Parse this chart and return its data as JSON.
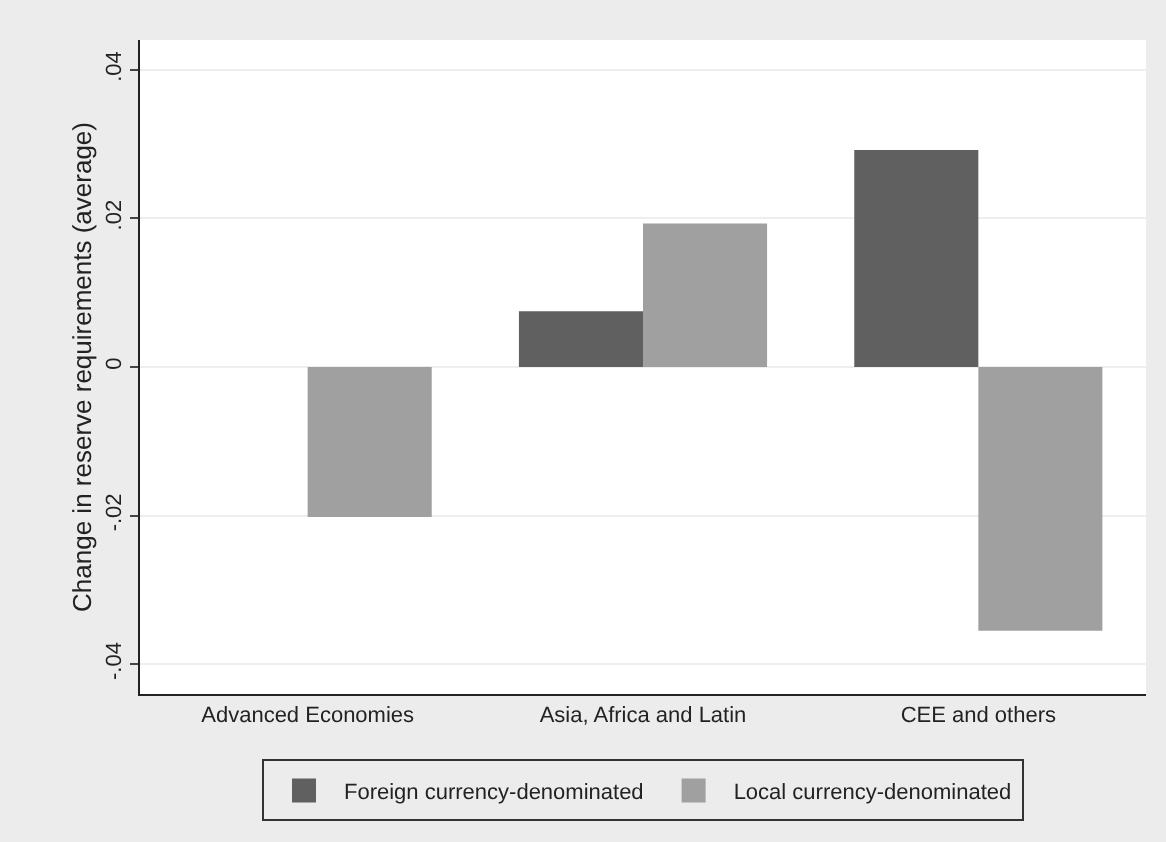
{
  "chart_data": {
    "type": "bar",
    "ylabel": "Change in reserve requirements (average)",
    "categories": [
      "Advanced Economies",
      "Asia, Africa and Latin",
      "CEE and others"
    ],
    "series": [
      {
        "name": "Foreign currency-denominated",
        "color": "#606060",
        "values": [
          null,
          0.0075,
          0.0292
        ]
      },
      {
        "name": "Local currency-denominated",
        "color": "#a0a0a0",
        "values": [
          -0.0202,
          0.0193,
          -0.0355
        ]
      }
    ],
    "ylim": [
      -0.044,
      0.044
    ],
    "yticks": [
      {
        "value": -0.04,
        "label": "-.04"
      },
      {
        "value": -0.02,
        "label": "-.02"
      },
      0,
      {
        "value": 0.02,
        "label": ".02"
      },
      {
        "value": 0.04,
        "label": ".04"
      }
    ],
    "grid": "y",
    "legend": "bottom"
  }
}
